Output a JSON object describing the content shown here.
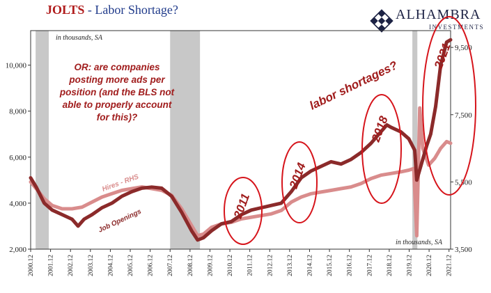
{
  "title": {
    "main": "JOLTS",
    "sep": " - ",
    "subtitle": "Labor Shortage?"
  },
  "logo": {
    "brand": "ALHAMBRA",
    "tagline": "INVESTMENTS",
    "colors": {
      "mark": "#1c2244"
    }
  },
  "chart_data": {
    "type": "line",
    "title": "JOLTS - Labor Shortage?",
    "unit_note_left": "in thousands, SA",
    "unit_note_right": "in thousands, SA",
    "x_range": [
      2000.92,
      2022.0
    ],
    "x_tick_labels": [
      "2000.12",
      "2001.12",
      "2002.12",
      "2003.12",
      "2004.12",
      "2005.12",
      "2006.12",
      "2007.12",
      "2008.12",
      "2009.12",
      "2010.12",
      "2011.12",
      "2012.12",
      "2013.12",
      "2014.12",
      "2015.12",
      "2016.12",
      "2017.12",
      "2018.12",
      "2019.12",
      "2020.12",
      "2021.12"
    ],
    "y_left": {
      "range": [
        2000,
        11500
      ],
      "ticks": [
        2000,
        4000,
        6000,
        8000,
        10000
      ],
      "tick_labels": [
        "2,000",
        "4,000",
        "6,000",
        "8,000",
        "10,000"
      ]
    },
    "y_right": {
      "range": [
        3500,
        10000
      ],
      "ticks": [
        3500,
        5500,
        7500,
        9500
      ],
      "tick_labels": [
        "3,500",
        "5,500",
        "7,500",
        "9,500"
      ]
    },
    "recessions": [
      [
        2001.17,
        2001.83
      ],
      [
        2007.92,
        2009.42
      ],
      [
        2020.08,
        2020.33
      ]
    ],
    "series": [
      {
        "name": "Job Openings",
        "axis": "left",
        "color": "#8b2a2a",
        "points": [
          [
            2000.92,
            5100
          ],
          [
            2001.2,
            4700
          ],
          [
            2001.6,
            4000
          ],
          [
            2002.0,
            3700
          ],
          [
            2002.5,
            3500
          ],
          [
            2003.0,
            3300
          ],
          [
            2003.3,
            3000
          ],
          [
            2003.6,
            3300
          ],
          [
            2004.0,
            3500
          ],
          [
            2004.5,
            3800
          ],
          [
            2005.0,
            4000
          ],
          [
            2005.5,
            4300
          ],
          [
            2006.0,
            4500
          ],
          [
            2006.5,
            4650
          ],
          [
            2007.0,
            4700
          ],
          [
            2007.5,
            4650
          ],
          [
            2008.0,
            4300
          ],
          [
            2008.5,
            3600
          ],
          [
            2009.0,
            2800
          ],
          [
            2009.3,
            2400
          ],
          [
            2009.6,
            2500
          ],
          [
            2010.0,
            2800
          ],
          [
            2010.5,
            3100
          ],
          [
            2011.0,
            3200
          ],
          [
            2011.5,
            3500
          ],
          [
            2012.0,
            3700
          ],
          [
            2012.5,
            3800
          ],
          [
            2013.0,
            3900
          ],
          [
            2013.5,
            4000
          ],
          [
            2014.0,
            4500
          ],
          [
            2014.5,
            5100
          ],
          [
            2015.0,
            5400
          ],
          [
            2015.5,
            5600
          ],
          [
            2016.0,
            5800
          ],
          [
            2016.5,
            5700
          ],
          [
            2017.0,
            5900
          ],
          [
            2017.5,
            6200
          ],
          [
            2018.0,
            6600
          ],
          [
            2018.5,
            7100
          ],
          [
            2018.8,
            7400
          ],
          [
            2019.0,
            7300
          ],
          [
            2019.5,
            7100
          ],
          [
            2019.9,
            6800
          ],
          [
            2020.2,
            6300
          ],
          [
            2020.3,
            5000
          ],
          [
            2020.5,
            5600
          ],
          [
            2020.8,
            6500
          ],
          [
            2021.0,
            7000
          ],
          [
            2021.25,
            8200
          ],
          [
            2021.5,
            10000
          ],
          [
            2021.8,
            11000
          ],
          [
            2022.0,
            11100
          ]
        ]
      },
      {
        "name": "Hires - RHS",
        "axis": "right",
        "color": "#d98c8c",
        "points": [
          [
            2000.92,
            5500
          ],
          [
            2001.2,
            5300
          ],
          [
            2001.6,
            5000
          ],
          [
            2002.0,
            4800
          ],
          [
            2002.5,
            4700
          ],
          [
            2003.0,
            4700
          ],
          [
            2003.5,
            4750
          ],
          [
            2004.0,
            4900
          ],
          [
            2004.5,
            5050
          ],
          [
            2005.0,
            5150
          ],
          [
            2005.5,
            5250
          ],
          [
            2006.0,
            5300
          ],
          [
            2006.5,
            5350
          ],
          [
            2007.0,
            5300
          ],
          [
            2007.5,
            5250
          ],
          [
            2008.0,
            5100
          ],
          [
            2008.5,
            4700
          ],
          [
            2009.0,
            4200
          ],
          [
            2009.3,
            3900
          ],
          [
            2009.6,
            3950
          ],
          [
            2010.0,
            4150
          ],
          [
            2010.5,
            4250
          ],
          [
            2011.0,
            4300
          ],
          [
            2011.5,
            4400
          ],
          [
            2012.0,
            4450
          ],
          [
            2012.5,
            4500
          ],
          [
            2013.0,
            4550
          ],
          [
            2013.5,
            4650
          ],
          [
            2014.0,
            4900
          ],
          [
            2014.5,
            5050
          ],
          [
            2015.0,
            5150
          ],
          [
            2015.5,
            5200
          ],
          [
            2016.0,
            5250
          ],
          [
            2016.5,
            5300
          ],
          [
            2017.0,
            5350
          ],
          [
            2017.5,
            5450
          ],
          [
            2018.0,
            5600
          ],
          [
            2018.5,
            5700
          ],
          [
            2019.0,
            5750
          ],
          [
            2019.5,
            5800
          ],
          [
            2019.9,
            5850
          ],
          [
            2020.15,
            5900
          ],
          [
            2020.3,
            3900
          ],
          [
            2020.45,
            7700
          ],
          [
            2020.6,
            6500
          ],
          [
            2020.9,
            6000
          ],
          [
            2021.2,
            6200
          ],
          [
            2021.5,
            6500
          ],
          [
            2021.8,
            6700
          ],
          [
            2022.0,
            6650
          ]
        ]
      }
    ],
    "series_labels": [
      {
        "series": "Hires - RHS",
        "text": "Hires - RHS",
        "color": "#d98c8c"
      },
      {
        "series": "Job Openings",
        "text": "Job Openings",
        "color": "#8b2a2a"
      }
    ],
    "annotations": {
      "question": [
        "OR: are companies",
        "posting more ads per",
        "position (and the BLS not",
        "able to properly account",
        "for this)?"
      ],
      "labor": "labor shortages?",
      "circles": [
        "2011",
        "2014",
        "2018",
        "2021"
      ]
    }
  }
}
